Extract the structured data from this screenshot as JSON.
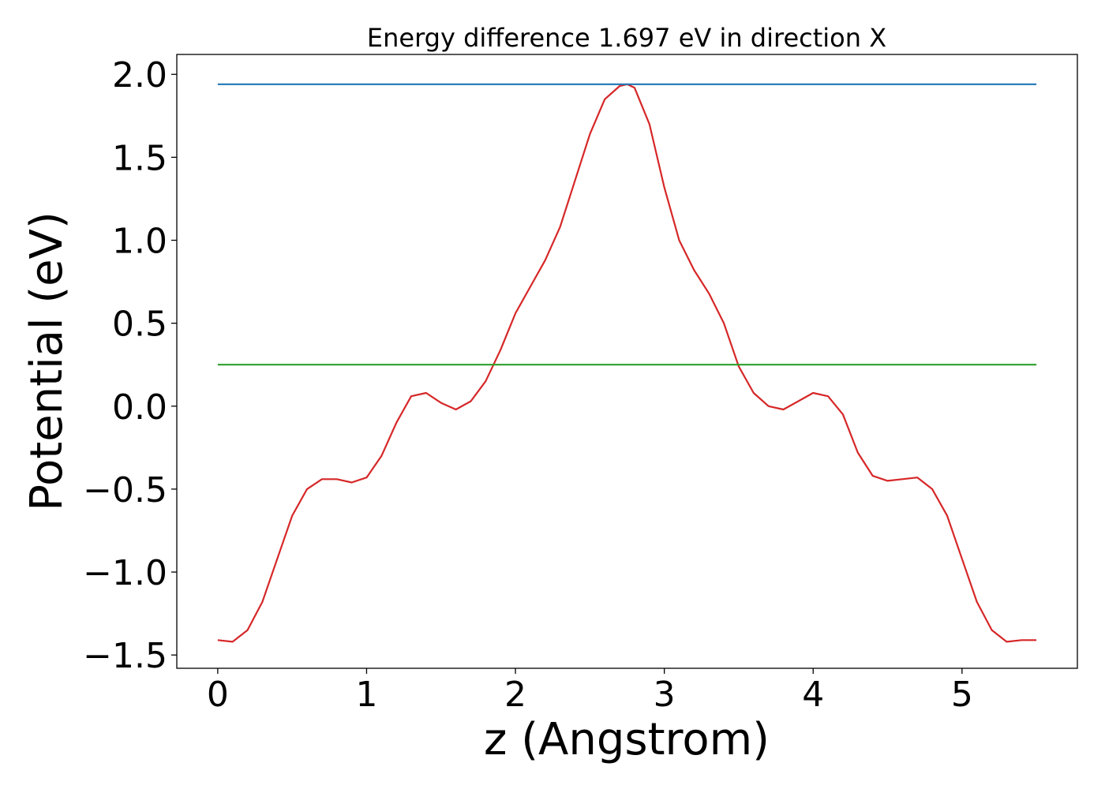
{
  "chart_data": {
    "type": "line",
    "title": "Energy difference 1.697 eV in direction X",
    "xlabel": "z (Angstrom)",
    "ylabel": "Potential (eV)",
    "xlim": [
      -0.275,
      5.775
    ],
    "ylim": [
      -1.58,
      2.12
    ],
    "xticks": [
      0,
      1,
      2,
      3,
      4,
      5
    ],
    "xtick_labels": [
      "0",
      "1",
      "2",
      "3",
      "4",
      "5"
    ],
    "yticks": [
      2.0,
      1.5,
      1.0,
      0.5,
      0.0,
      -0.5,
      -1.0,
      -1.5
    ],
    "ytick_labels": [
      "2.0",
      "1.5",
      "1.0",
      "0.5",
      "0.0",
      "−0.5",
      "−1.0",
      "−1.5"
    ],
    "grid": false,
    "series": [
      {
        "color": "#d62728",
        "x": [
          0.0,
          0.1,
          0.2,
          0.3,
          0.4,
          0.5,
          0.6,
          0.7,
          0.8,
          0.9,
          1.0,
          1.1,
          1.2,
          1.3,
          1.4,
          1.5,
          1.6,
          1.7,
          1.8,
          1.9,
          2.0,
          2.1,
          2.2,
          2.3,
          2.4,
          2.5,
          2.6,
          2.7,
          2.75,
          2.8,
          2.9,
          3.0,
          3.1,
          3.2,
          3.3,
          3.4,
          3.5,
          3.6,
          3.7,
          3.8,
          3.9,
          4.0,
          4.1,
          4.2,
          4.3,
          4.4,
          4.5,
          4.6,
          4.7,
          4.8,
          4.9,
          5.0,
          5.1,
          5.2,
          5.3,
          5.4,
          5.5
        ],
        "y": [
          -1.41,
          -1.42,
          -1.35,
          -1.18,
          -0.92,
          -0.66,
          -0.5,
          -0.44,
          -0.44,
          -0.46,
          -0.43,
          -0.3,
          -0.1,
          0.06,
          0.08,
          0.02,
          -0.02,
          0.03,
          0.15,
          0.34,
          0.56,
          0.72,
          0.88,
          1.08,
          1.36,
          1.64,
          1.85,
          1.93,
          1.94,
          1.92,
          1.7,
          1.32,
          1.0,
          0.82,
          0.68,
          0.5,
          0.24,
          0.08,
          0.0,
          -0.02,
          0.03,
          0.08,
          0.06,
          -0.05,
          -0.28,
          -0.42,
          -0.45,
          -0.44,
          -0.43,
          -0.5,
          -0.66,
          -0.92,
          -1.18,
          -1.35,
          -1.42,
          -1.41,
          -1.41
        ]
      },
      {
        "color": "#1f77b4",
        "x": [
          0.0,
          5.5
        ],
        "y": [
          1.94,
          1.94
        ]
      },
      {
        "color": "#2ca02c",
        "x": [
          0.0,
          5.5
        ],
        "y": [
          0.25,
          0.25
        ]
      }
    ]
  }
}
